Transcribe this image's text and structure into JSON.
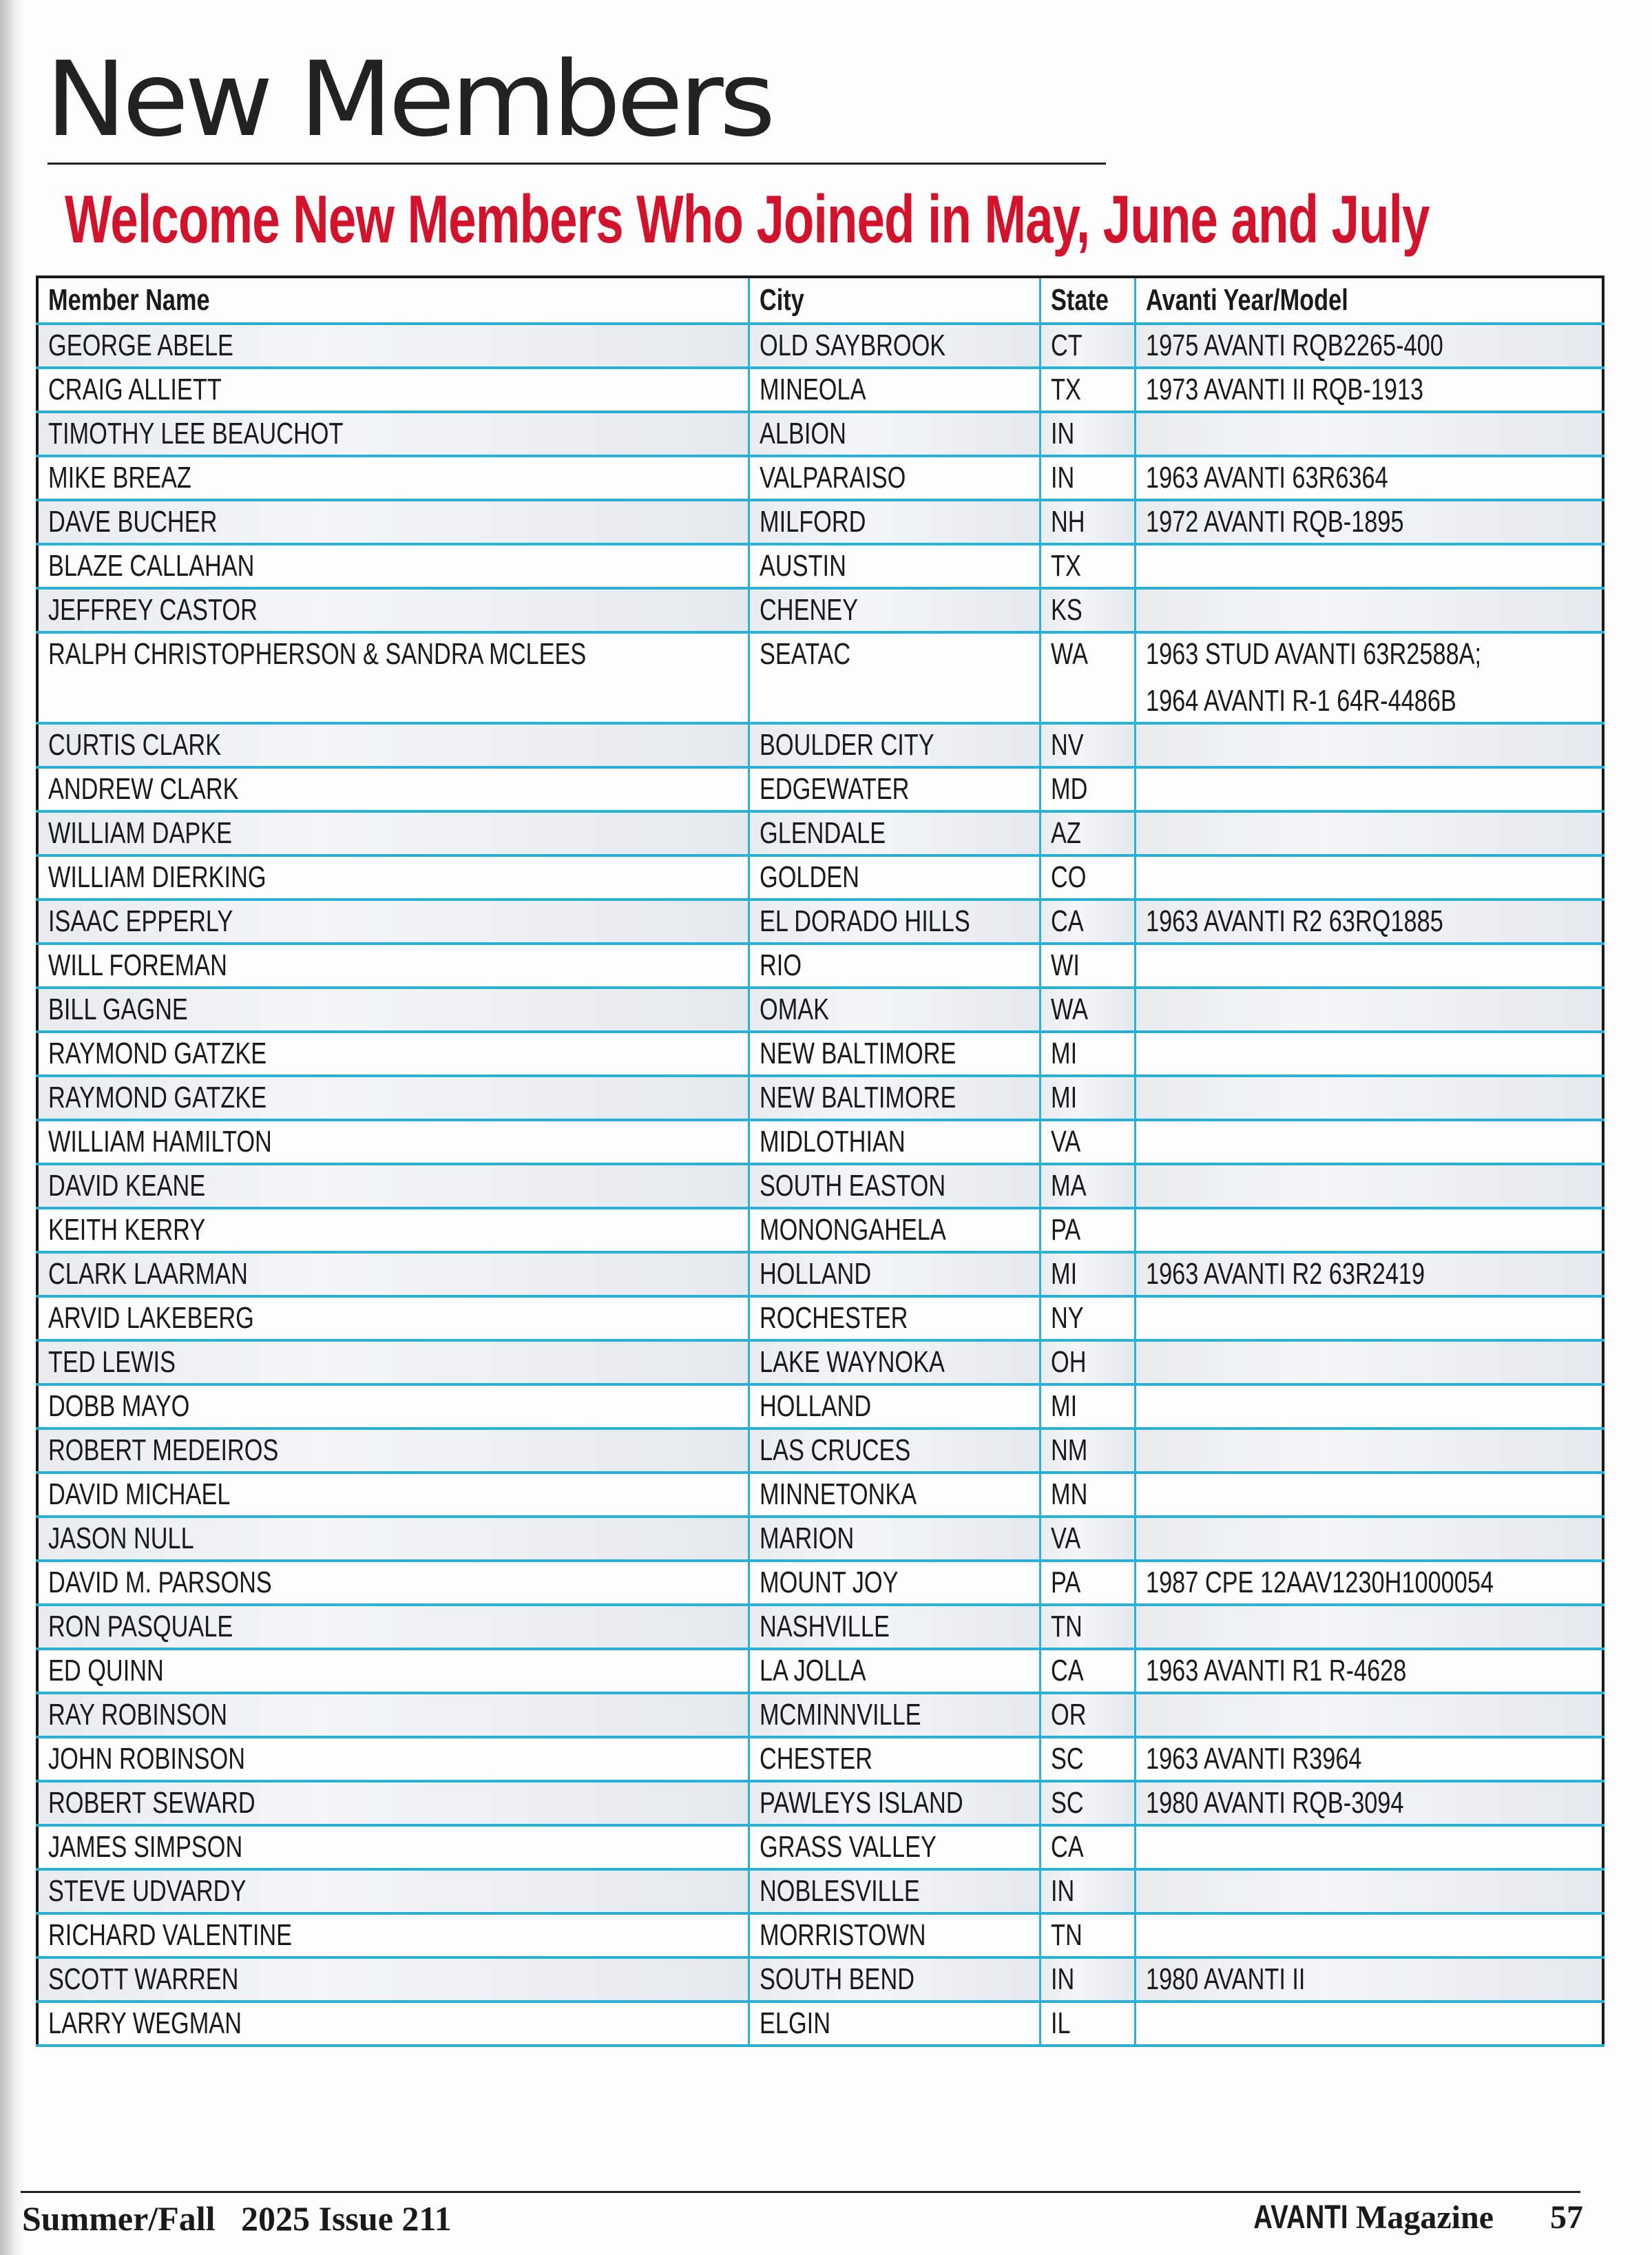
{
  "page": {
    "title": "New Members",
    "subtitle": "Welcome New Members Who Joined in May, June and July",
    "accent_color": "#d3122b",
    "rule_color": "#2bb0d6"
  },
  "table": {
    "headers": [
      "Member Name",
      "City",
      "State",
      "Avanti Year/Model"
    ],
    "rows": [
      {
        "name": "GEORGE ABELE",
        "city": "OLD SAYBROOK",
        "state": "CT",
        "model": [
          "1975 AVANTI RQB2265-400"
        ]
      },
      {
        "name": "CRAIG ALLIETT",
        "city": "MINEOLA",
        "state": "TX",
        "model": [
          "1973 AVANTI II RQB-1913"
        ]
      },
      {
        "name": "TIMOTHY LEE BEAUCHOT",
        "city": "ALBION",
        "state": "IN",
        "model": []
      },
      {
        "name": "MIKE BREAZ",
        "city": "VALPARAISO",
        "state": "IN",
        "model": [
          "1963 AVANTI 63R6364"
        ]
      },
      {
        "name": "DAVE BUCHER",
        "city": "MILFORD",
        "state": "NH",
        "model": [
          "1972 AVANTI RQB-1895"
        ]
      },
      {
        "name": "BLAZE CALLAHAN",
        "city": "AUSTIN",
        "state": "TX",
        "model": []
      },
      {
        "name": "JEFFREY CASTOR",
        "city": "CHENEY",
        "state": "KS",
        "model": []
      },
      {
        "name": "RALPH CHRISTOPHERSON & SANDRA MCLEES",
        "city": "SEATAC",
        "state": "WA",
        "model": [
          "1963 STUD AVANTI 63R2588A;",
          "1964 AVANTI R-1 64R-4486B"
        ]
      },
      {
        "name": "CURTIS CLARK",
        "city": "BOULDER CITY",
        "state": "NV",
        "model": []
      },
      {
        "name": "ANDREW CLARK",
        "city": "EDGEWATER",
        "state": "MD",
        "model": []
      },
      {
        "name": "WILLIAM DAPKE",
        "city": "GLENDALE",
        "state": "AZ",
        "model": []
      },
      {
        "name": "WILLIAM DIERKING",
        "city": "GOLDEN",
        "state": "CO",
        "model": []
      },
      {
        "name": "ISAAC EPPERLY",
        "city": "EL DORADO HILLS",
        "state": "CA",
        "model": [
          "1963 AVANTI R2 63RQ1885"
        ]
      },
      {
        "name": "WILL FOREMAN",
        "city": "RIO",
        "state": "WI",
        "model": []
      },
      {
        "name": "BILL GAGNE",
        "city": "OMAK",
        "state": "WA",
        "model": []
      },
      {
        "name": "RAYMOND GATZKE",
        "city": "NEW BALTIMORE",
        "state": "MI",
        "model": []
      },
      {
        "name": "RAYMOND GATZKE",
        "city": "NEW BALTIMORE",
        "state": "MI",
        "model": []
      },
      {
        "name": "WILLIAM HAMILTON",
        "city": "MIDLOTHIAN",
        "state": "VA",
        "model": []
      },
      {
        "name": "DAVID KEANE",
        "city": "SOUTH EASTON",
        "state": "MA",
        "model": []
      },
      {
        "name": "KEITH KERRY",
        "city": "MONONGAHELA",
        "state": "PA",
        "model": []
      },
      {
        "name": "CLARK LAARMAN",
        "city": "HOLLAND",
        "state": "MI",
        "model": [
          "1963 AVANTI R2 63R2419"
        ]
      },
      {
        "name": "ARVID LAKEBERG",
        "city": "ROCHESTER",
        "state": "NY",
        "model": []
      },
      {
        "name": "TED LEWIS",
        "city": "LAKE WAYNOKA",
        "state": "OH",
        "model": []
      },
      {
        "name": "DOBB MAYO",
        "city": "HOLLAND",
        "state": "MI",
        "model": []
      },
      {
        "name": "ROBERT MEDEIROS",
        "city": "LAS CRUCES",
        "state": "NM",
        "model": []
      },
      {
        "name": "DAVID MICHAEL",
        "city": "MINNETONKA",
        "state": "MN",
        "model": []
      },
      {
        "name": "JASON NULL",
        "city": "MARION",
        "state": "VA",
        "model": []
      },
      {
        "name": "DAVID M. PARSONS",
        "city": "MOUNT JOY",
        "state": "PA",
        "model": [
          "1987 CPE 12AAV1230H1000054"
        ]
      },
      {
        "name": "RON PASQUALE",
        "city": "NASHVILLE",
        "state": "TN",
        "model": []
      },
      {
        "name": "ED QUINN",
        "city": "LA JOLLA",
        "state": "CA",
        "model": [
          "1963 AVANTI R1 R-4628"
        ]
      },
      {
        "name": "RAY ROBINSON",
        "city": "MCMINNVILLE",
        "state": "OR",
        "model": []
      },
      {
        "name": "JOHN ROBINSON",
        "city": "CHESTER",
        "state": "SC",
        "model": [
          "1963 AVANTI R3964"
        ]
      },
      {
        "name": "ROBERT SEWARD",
        "city": "PAWLEYS ISLAND",
        "state": "SC",
        "model": [
          "1980 AVANTI RQB-3094"
        ]
      },
      {
        "name": "JAMES SIMPSON",
        "city": "GRASS VALLEY",
        "state": "CA",
        "model": []
      },
      {
        "name": "STEVE UDVARDY",
        "city": "NOBLESVILLE",
        "state": "IN",
        "model": []
      },
      {
        "name": "RICHARD VALENTINE",
        "city": "MORRISTOWN",
        "state": "TN",
        "model": []
      },
      {
        "name": "SCOTT WARREN",
        "city": "SOUTH BEND",
        "state": "IN",
        "model": [
          "1980 AVANTI II"
        ]
      },
      {
        "name": "LARRY WEGMAN",
        "city": "ELGIN",
        "state": "IL",
        "model": []
      }
    ]
  },
  "footer": {
    "issue": "Summer/Fall   2025 Issue 211",
    "brand": "AVANTI",
    "magazine": "Magazine",
    "page_number": "57"
  }
}
